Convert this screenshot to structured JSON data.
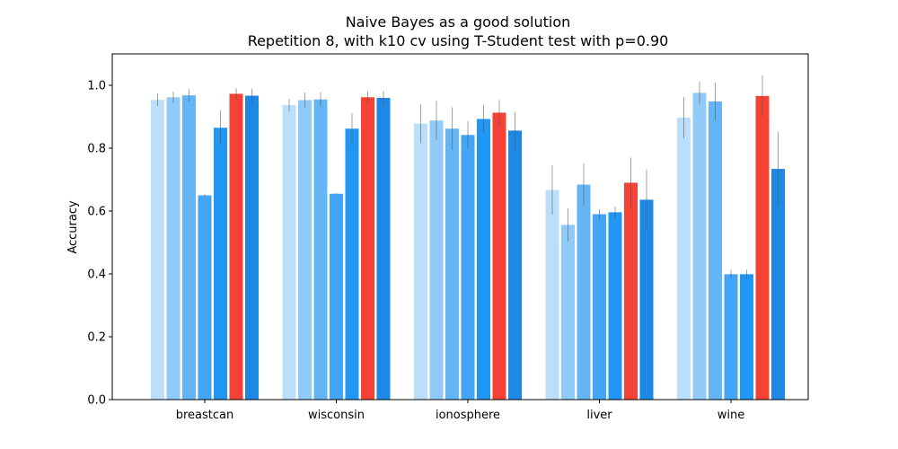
{
  "chart_data": {
    "type": "bar",
    "title": "Naive Bayes as a good solution",
    "subtitle": "Repetition 8, with k10 cv using T-Student test with p=0.90",
    "xlabel": "",
    "ylabel": "Accuracy",
    "ylim": [
      0,
      1.1
    ],
    "yticks": [
      "0.0",
      "0.2",
      "0.4",
      "0.6",
      "0.8",
      "1.0"
    ],
    "grid": false,
    "categories": [
      "breastcan",
      "wisconsin",
      "ionosphere",
      "liver",
      "wine"
    ],
    "bar_colors": [
      "#bbdefb",
      "#90caf9",
      "#64b5f6",
      "#42a5f5",
      "#2196f3",
      "#f44336",
      "#1e88e5"
    ],
    "series": [
      {
        "values": [
          0.954,
          0.937,
          0.878,
          0.667,
          0.897
        ],
        "errors": [
          0.02,
          0.02,
          0.062,
          0.078,
          0.065
        ]
      },
      {
        "values": [
          0.962,
          0.953,
          0.888,
          0.556,
          0.976
        ],
        "errors": [
          0.018,
          0.024,
          0.062,
          0.052,
          0.036
        ]
      },
      {
        "values": [
          0.968,
          0.955,
          0.862,
          0.684,
          0.949
        ],
        "errors": [
          0.02,
          0.022,
          0.068,
          0.068,
          0.06
        ]
      },
      {
        "values": [
          0.65,
          0.655,
          0.842,
          0.59,
          0.399
        ],
        "errors": [
          0.004,
          0.002,
          0.044,
          0.016,
          0.014
        ]
      },
      {
        "values": [
          0.865,
          0.862,
          0.893,
          0.596,
          0.399
        ],
        "errors": [
          0.055,
          0.05,
          0.044,
          0.018,
          0.014
        ]
      },
      {
        "values": [
          0.973,
          0.962,
          0.913,
          0.69,
          0.966
        ],
        "errors": [
          0.018,
          0.018,
          0.04,
          0.08,
          0.065
        ]
      },
      {
        "values": [
          0.967,
          0.96,
          0.856,
          0.636,
          0.734
        ],
        "errors": [
          0.022,
          0.022,
          0.058,
          0.095,
          0.118
        ]
      }
    ],
    "highlight_series_index": 5
  }
}
